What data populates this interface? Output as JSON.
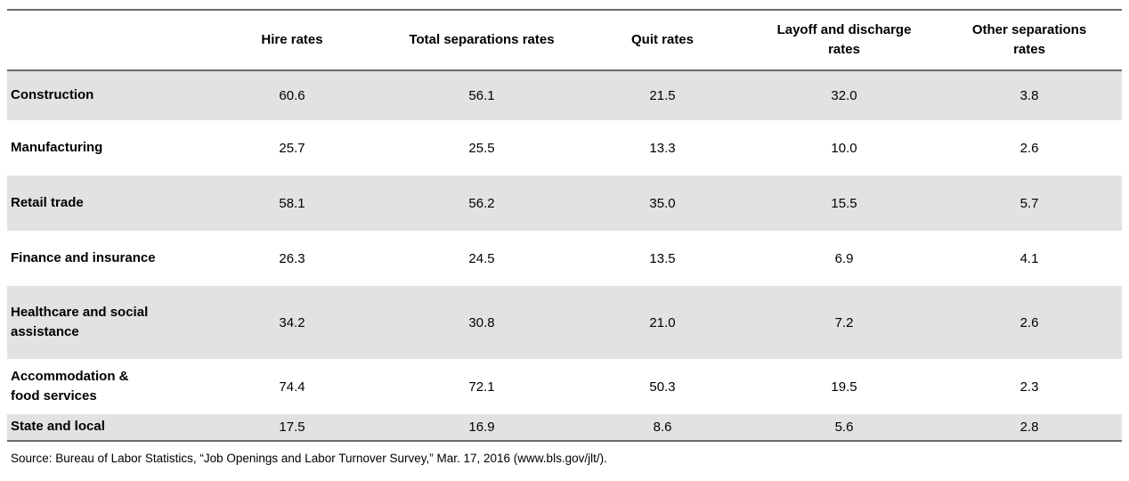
{
  "chart_data": {
    "type": "table",
    "columns": [
      "",
      "Hire rates",
      "Total separations rates",
      "Quit rates",
      "Layoff and discharge\nrates",
      "Other separations\nrates"
    ],
    "rows": [
      {
        "label": "Construction",
        "values": [
          "60.6",
          "56.1",
          "21.5",
          "32.0",
          "3.8"
        ]
      },
      {
        "label": "Manufacturing",
        "values": [
          "25.7",
          "25.5",
          "13.3",
          "10.0",
          "2.6"
        ]
      },
      {
        "label": "Retail trade",
        "values": [
          "58.1",
          "56.2",
          "35.0",
          "15.5",
          "5.7"
        ]
      },
      {
        "label": "Finance and insurance",
        "values": [
          "26.3",
          "24.5",
          "13.5",
          "6.9",
          "4.1"
        ]
      },
      {
        "label": "Healthcare and social\nassistance",
        "values": [
          "34.2",
          "30.8",
          "21.0",
          "7.2",
          "2.6"
        ]
      },
      {
        "label": "Accommodation &\nfood services",
        "values": [
          "74.4",
          "72.1",
          "50.3",
          "19.5",
          "2.3"
        ]
      },
      {
        "label": "State and local",
        "values": [
          "17.5",
          "16.9",
          "8.6",
          "5.6",
          "2.8"
        ]
      }
    ],
    "source_note": "Source: Bureau of Labor Statistics, “Job Openings and Labor Turnover Survey,” Mar. 17, 2016 (www.bls.gov/jlt/).",
    "layout": {
      "shaded_row_indexes": [
        0,
        2,
        4,
        6
      ],
      "colors": {
        "row_shade": "#e2e2e2",
        "rule_line": "#6b6b6b",
        "text": "#000000",
        "background": "#ffffff"
      }
    }
  }
}
